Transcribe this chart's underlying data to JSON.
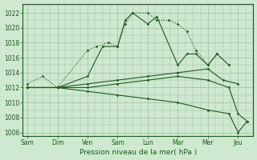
{
  "background_color": "#cfe8d0",
  "grid_color": "#9dbf9d",
  "line_color": "#1a5e1a",
  "title": "Pression niveau de la mer( hPa )",
  "xlabels": [
    "Sam",
    "Dim",
    "Ven",
    "Sam",
    "Lun",
    "Mar",
    "Mer",
    "Jeu"
  ],
  "xtick_positions": [
    0,
    1,
    2,
    3,
    4,
    5,
    6,
    7
  ],
  "ylim": [
    1006,
    1023
  ],
  "yticks": [
    1006,
    1008,
    1010,
    1012,
    1014,
    1016,
    1018,
    1020,
    1022
  ],
  "series": [
    {
      "x": [
        0,
        0.5,
        1,
        2,
        2.3,
        2.7,
        3,
        3.25,
        3.5,
        4,
        4.3,
        4.7,
        5,
        5.3,
        5.6,
        6,
        6.3
      ],
      "y": [
        1012.5,
        1013.5,
        1012,
        1017,
        1017.5,
        1018,
        1017.5,
        1020.5,
        1022,
        1022,
        1021,
        1021,
        1020.5,
        1019.5,
        1017,
        1015,
        1016.5
      ],
      "dotted": true,
      "marker": "D",
      "markersize": 1.5,
      "linewidth": 0.8
    },
    {
      "x": [
        0,
        1,
        2,
        2.5,
        3,
        3.25,
        3.5,
        4,
        4.3,
        5,
        5.3,
        5.6,
        6,
        6.3,
        6.7
      ],
      "y": [
        1012,
        1012,
        1013.5,
        1017.5,
        1017.5,
        1021,
        1022,
        1020.5,
        1021.5,
        1015,
        1016.5,
        1016.5,
        1015,
        1016.5,
        1015
      ],
      "dotted": false,
      "marker": "D",
      "markersize": 1.5,
      "linewidth": 0.8
    },
    {
      "x": [
        0,
        1,
        2,
        3,
        4,
        5,
        6,
        6.5,
        7
      ],
      "y": [
        1012,
        1012,
        1012.5,
        1013,
        1013.5,
        1014,
        1014.5,
        1013,
        1012.5
      ],
      "dotted": false,
      "marker": "D",
      "markersize": 1.5,
      "linewidth": 0.8
    },
    {
      "x": [
        0,
        1,
        2,
        3,
        4,
        5,
        6,
        6.7,
        7,
        7.3
      ],
      "y": [
        1012,
        1012,
        1012,
        1012.5,
        1013,
        1013.5,
        1013,
        1012,
        1008.5,
        1007.5
      ],
      "dotted": false,
      "marker": "D",
      "markersize": 1.5,
      "linewidth": 0.8
    },
    {
      "x": [
        0,
        1,
        2,
        3,
        4,
        5,
        6,
        6.7,
        7,
        7.3
      ],
      "y": [
        1012,
        1012,
        1011.5,
        1011,
        1010.5,
        1010,
        1009,
        1008.5,
        1006,
        1007.5
      ],
      "dotted": false,
      "marker": "D",
      "markersize": 1.5,
      "linewidth": 0.8
    }
  ]
}
